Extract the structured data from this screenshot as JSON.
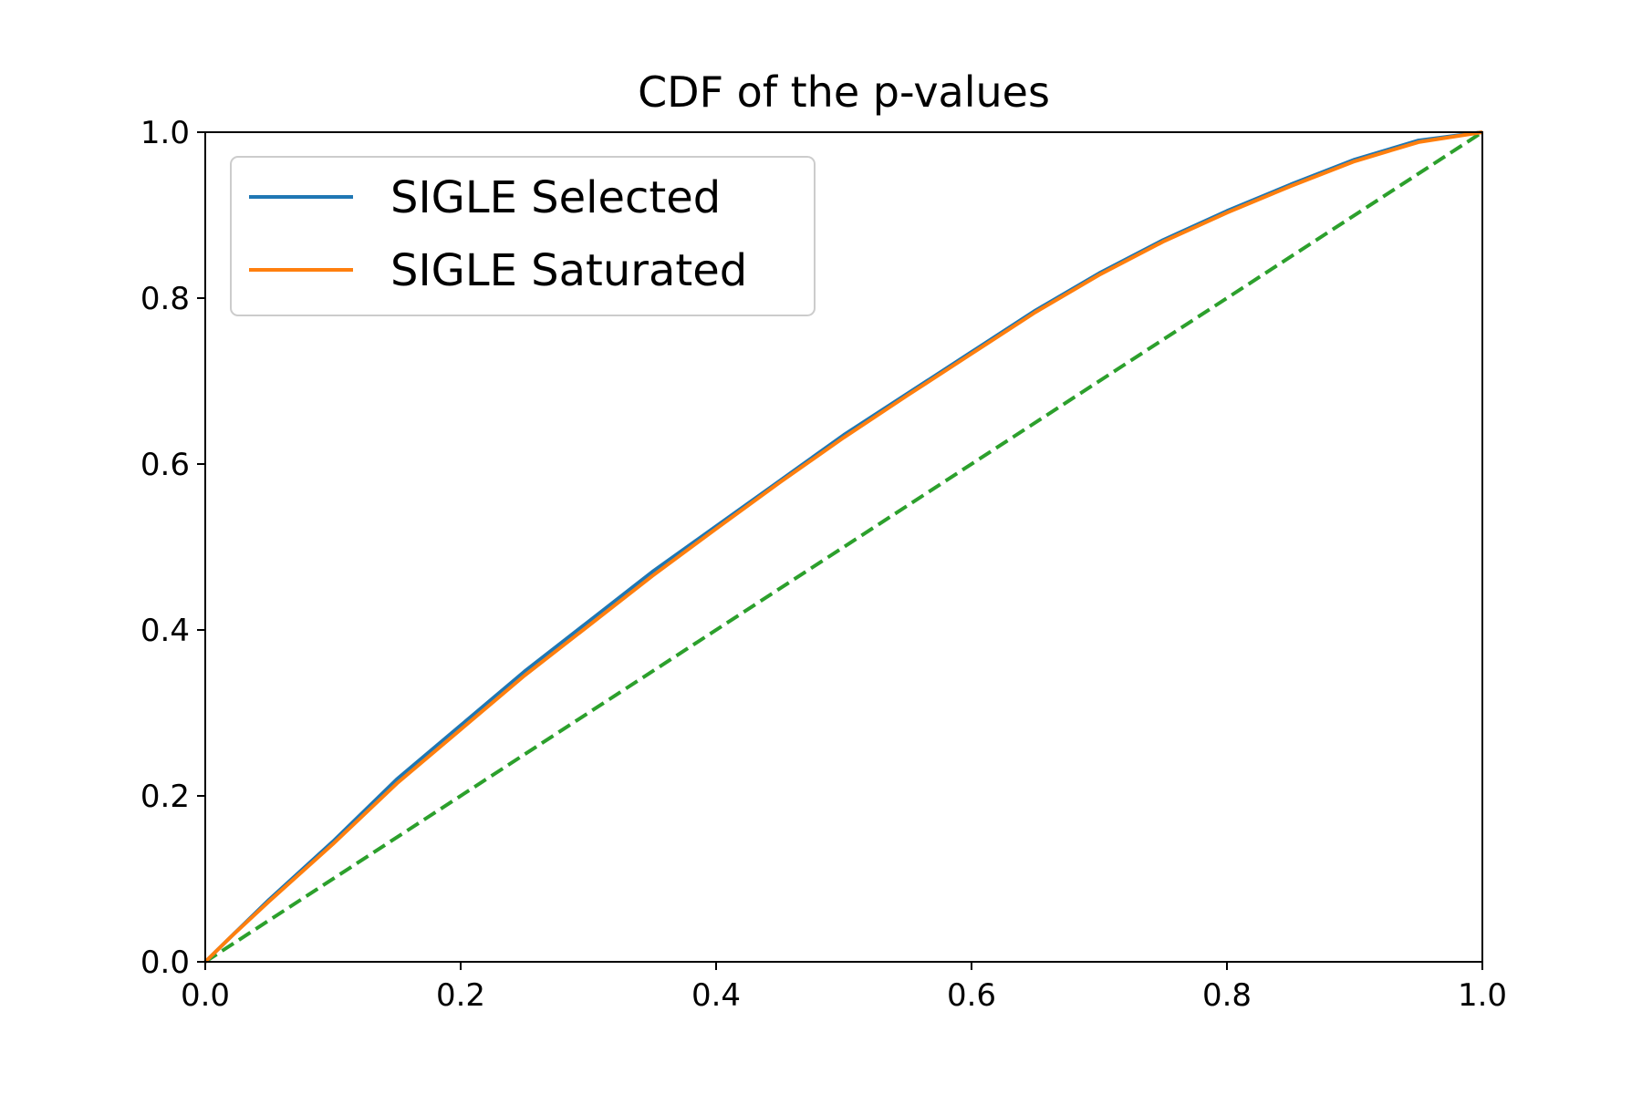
{
  "chart_data": {
    "type": "line",
    "title": "CDF of the p-values",
    "xlabel": "",
    "ylabel": "",
    "xlim": [
      0.0,
      1.0
    ],
    "ylim": [
      0.0,
      1.0
    ],
    "grid": false,
    "legend_position": "top-left",
    "x_ticks": [
      "0.0",
      "0.2",
      "0.4",
      "0.6",
      "0.8",
      "1.0"
    ],
    "y_ticks": [
      "0.0",
      "0.2",
      "0.4",
      "0.6",
      "0.8",
      "1.0"
    ],
    "series": [
      {
        "name": "SIGLE Selected",
        "color": "#1f77b4",
        "style": "solid",
        "x": [
          0.0,
          0.02,
          0.05,
          0.1,
          0.15,
          0.2,
          0.25,
          0.3,
          0.35,
          0.4,
          0.45,
          0.5,
          0.55,
          0.6,
          0.65,
          0.7,
          0.75,
          0.8,
          0.85,
          0.9,
          0.95,
          1.0
        ],
        "y": [
          0.0,
          0.03,
          0.075,
          0.145,
          0.22,
          0.285,
          0.35,
          0.41,
          0.47,
          0.525,
          0.58,
          0.635,
          0.685,
          0.735,
          0.785,
          0.83,
          0.87,
          0.905,
          0.937,
          0.967,
          0.99,
          1.0
        ]
      },
      {
        "name": "SIGLE Saturated",
        "color": "#ff7f0e",
        "style": "solid",
        "x": [
          0.0,
          0.02,
          0.05,
          0.1,
          0.15,
          0.2,
          0.25,
          0.3,
          0.35,
          0.4,
          0.45,
          0.5,
          0.55,
          0.6,
          0.65,
          0.7,
          0.75,
          0.8,
          0.85,
          0.9,
          0.95,
          1.0
        ],
        "y": [
          0.0,
          0.03,
          0.073,
          0.142,
          0.215,
          0.28,
          0.345,
          0.405,
          0.465,
          0.522,
          0.578,
          0.632,
          0.683,
          0.733,
          0.783,
          0.828,
          0.868,
          0.903,
          0.935,
          0.965,
          0.988,
          1.0
        ]
      },
      {
        "color": "#2ca02c",
        "style": "dashed",
        "x": [
          0.0,
          1.0
        ],
        "y": [
          0.0,
          1.0
        ]
      }
    ]
  }
}
